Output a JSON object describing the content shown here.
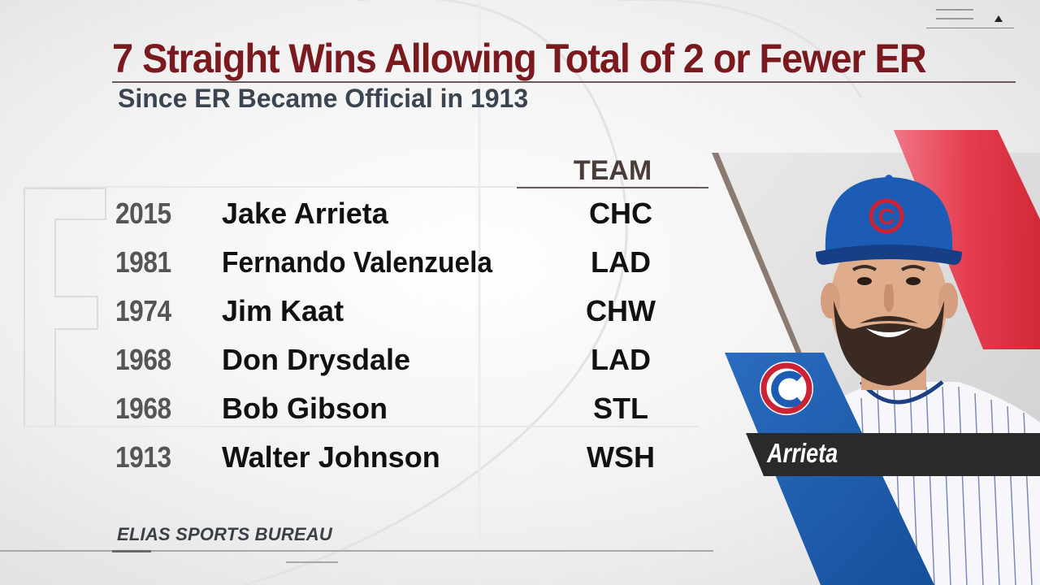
{
  "header": {
    "title": "7 Straight Wins Allowing Total of 2 or Fewer ER",
    "subtitle": "Since ER Became Official in 1913"
  },
  "table": {
    "team_header": "TEAM",
    "rows": [
      {
        "year": "2015",
        "name": "Jake Arrieta",
        "team": "CHC"
      },
      {
        "year": "1981",
        "name": "Fernando Valenzuela",
        "team": "LAD"
      },
      {
        "year": "1974",
        "name": "Jim Kaat",
        "team": "CHW"
      },
      {
        "year": "1968",
        "name": "Don Drysdale",
        "team": "LAD"
      },
      {
        "year": "1968",
        "name": "Bob Gibson",
        "team": "STL"
      },
      {
        "year": "1913",
        "name": "Walter Johnson",
        "team": "WSH"
      }
    ]
  },
  "source": "ELIAS SPORTS BUREAU",
  "player_panel": {
    "name_label": "Arrieta",
    "cap_logo_letter": "C",
    "team_logo_letter": "C",
    "colors": {
      "cubs_blue": "#1c5fb0",
      "cubs_red": "#cc2233",
      "title_maroon": "#7a1a1e",
      "red_stripe": "#e03040"
    }
  }
}
